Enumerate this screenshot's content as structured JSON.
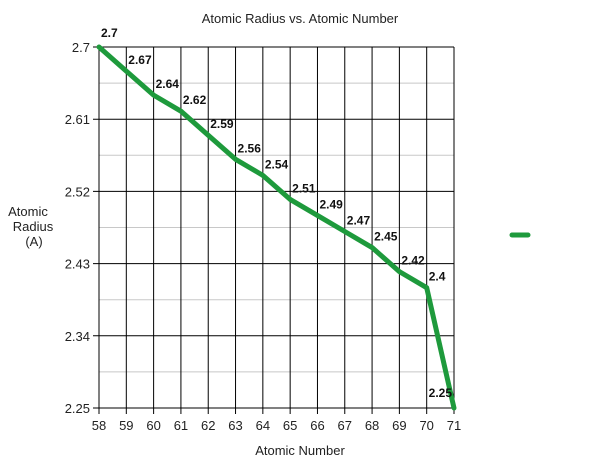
{
  "chart_data": {
    "type": "line",
    "title": "Atomic Radius vs. Atomic Number",
    "xlabel": "Atomic Number",
    "ylabel_lines": [
      "Atomic",
      "Radius",
      "(A)"
    ],
    "x": [
      58,
      59,
      60,
      61,
      62,
      63,
      64,
      65,
      66,
      67,
      68,
      69,
      70,
      71
    ],
    "x_ticks": [
      "58",
      "59",
      "60",
      "61",
      "62",
      "63",
      "64",
      "65",
      "66",
      "67",
      "68",
      "69",
      "70",
      "71"
    ],
    "y_ticks": [
      "2.7",
      "2.61",
      "2.52",
      "2.43",
      "2.34",
      "2.25"
    ],
    "y_tick_values": [
      2.7,
      2.61,
      2.52,
      2.43,
      2.34,
      2.25
    ],
    "series": [
      {
        "values": [
          2.7,
          2.67,
          2.64,
          2.62,
          2.59,
          2.56,
          2.54,
          2.51,
          2.49,
          2.47,
          2.45,
          2.42,
          2.4,
          2.25
        ],
        "labels": [
          "2.7",
          "2.67",
          "2.64",
          "2.62",
          "2.59",
          "2.56",
          "2.54",
          "2.51",
          "2.49",
          "2.47",
          "2.45",
          "2.42",
          "2.4",
          "2.25"
        ],
        "color": "#1e9a3c"
      }
    ],
    "xlim": [
      58,
      71
    ],
    "ylim": [
      2.25,
      2.7
    ],
    "grid": true,
    "minor_grid_y": true,
    "legend": "right"
  }
}
